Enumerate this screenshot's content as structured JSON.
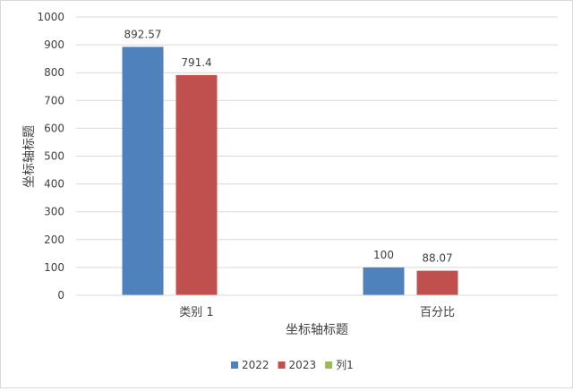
{
  "chart_data": {
    "type": "bar",
    "categories": [
      "类别 1",
      "百分比"
    ],
    "series": [
      {
        "name": "2022",
        "values": [
          892.57,
          100
        ],
        "color": "#4f81bd"
      },
      {
        "name": "2023",
        "values": [
          791.4,
          88.07
        ],
        "color": "#c0504d"
      },
      {
        "name": "列1",
        "values": [
          null,
          null
        ],
        "color": "#9bbb59"
      }
    ],
    "data_labels": [
      [
        "892.57",
        "100"
      ],
      [
        "791.4",
        "88.07"
      ],
      [
        null,
        null
      ]
    ],
    "xlabel": "坐标轴标题",
    "ylabel": "坐标轴标题",
    "ylim": [
      0,
      1000
    ],
    "yticks": [
      0,
      100,
      200,
      300,
      400,
      500,
      600,
      700,
      800,
      900,
      1000
    ],
    "grid": true,
    "legend_position": "bottom"
  }
}
